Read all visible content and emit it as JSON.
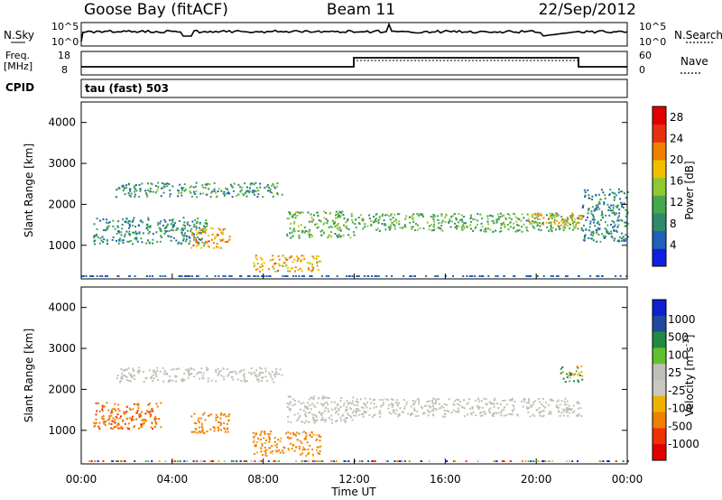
{
  "header": {
    "station": "Goose Bay (fitACF)",
    "beam": "Beam 11",
    "date": "22/Sep/2012"
  },
  "params": {
    "nsky_label": "N.Sky",
    "nsearch_label": "N.Search",
    "scale_top": "10^5",
    "scale_bottom": "10^0",
    "freq_label": "Freq.",
    "freq_unit": "[MHz]",
    "freq_ticks": [
      "18",
      "8"
    ],
    "nave_label": "Nave",
    "nave_ticks": [
      "60",
      "0"
    ],
    "cpid_label": "CPID",
    "cpid_text": "tau (fast) 503"
  },
  "colors": {
    "power_scale": [
      "#1020e0",
      "#2060b8",
      "#2e8a6a",
      "#45a84a",
      "#90c830",
      "#f0c000",
      "#f08000",
      "#e83010",
      "#e00000"
    ],
    "velocity_scale": [
      "#e00000",
      "#f03000",
      "#f08000",
      "#f0b000",
      "#c8c8c0",
      "#c0c0b8",
      "#60c030",
      "#208a40",
      "#204aa0",
      "#1020d0"
    ],
    "ground_scatter": "#c0c0b8"
  },
  "chart_data": [
    {
      "type": "heatmap",
      "title": "Power",
      "xlabel": "Time UT",
      "ylabel": "Slant Range [km]",
      "x_ticks": [
        "00:00",
        "04:00",
        "08:00",
        "12:00",
        "16:00",
        "20:00",
        "00:00"
      ],
      "xlim": [
        0,
        24
      ],
      "ylim": [
        180,
        4500
      ],
      "y_ticks": [
        1000,
        2000,
        3000,
        4000
      ],
      "colorbar": {
        "label": "Power [dB]",
        "ticks": [
          4,
          8,
          12,
          16,
          20,
          24,
          28
        ],
        "range": [
          0,
          30
        ]
      },
      "echo_regions": [
        {
          "t": [
            0.5,
            5.5
          ],
          "r": [
            1050,
            1700
          ],
          "level": 8
        },
        {
          "t": [
            1.5,
            8.8
          ],
          "r": [
            2200,
            2550
          ],
          "level": 9
        },
        {
          "t": [
            4.8,
            6.5
          ],
          "r": [
            950,
            1450
          ],
          "level": 21
        },
        {
          "t": [
            7.5,
            10.5
          ],
          "r": [
            380,
            780
          ],
          "level": 20
        },
        {
          "t": [
            9.0,
            12.0
          ],
          "r": [
            1200,
            1850
          ],
          "level": 12
        },
        {
          "t": [
            12.0,
            22.0
          ],
          "r": [
            1350,
            1800
          ],
          "level": 11
        },
        {
          "t": [
            19.5,
            22.0
          ],
          "r": [
            1500,
            1800
          ],
          "level": 20
        },
        {
          "t": [
            22.0,
            24.0
          ],
          "r": [
            1100,
            2400
          ],
          "level": 7
        }
      ]
    },
    {
      "type": "heatmap",
      "title": "Velocity",
      "xlabel": "Time UT",
      "ylabel": "Slant Range [km]",
      "x_ticks": [
        "00:00",
        "04:00",
        "08:00",
        "12:00",
        "16:00",
        "20:00",
        "00:00"
      ],
      "xlim": [
        0,
        24
      ],
      "ylim": [
        180,
        4500
      ],
      "y_ticks": [
        1000,
        2000,
        3000,
        4000
      ],
      "colorbar": {
        "label": "Velocity [m s^-1]",
        "ticks": [
          "1000",
          "500",
          "100",
          "25",
          "-25",
          "-100",
          "-500",
          "-1000"
        ]
      },
      "echo_regions": [
        {
          "t": [
            1.5,
            8.8
          ],
          "r": [
            2200,
            2550
          ],
          "kind": "ground"
        },
        {
          "t": [
            9.0,
            12.0
          ],
          "r": [
            1200,
            1850
          ],
          "kind": "ground"
        },
        {
          "t": [
            12.0,
            22.0
          ],
          "r": [
            1350,
            1800
          ],
          "kind": "ground"
        },
        {
          "t": [
            4.8,
            6.5
          ],
          "r": [
            950,
            1450
          ],
          "velocity": -300
        },
        {
          "t": [
            7.5,
            10.5
          ],
          "r": [
            380,
            1000
          ],
          "velocity": -200
        },
        {
          "t": [
            0.5,
            3.5
          ],
          "r": [
            1050,
            1700
          ],
          "velocity": -400
        },
        {
          "t": [
            21.0,
            22.0
          ],
          "r": [
            2200,
            2600
          ],
          "velocity": 80
        }
      ]
    }
  ]
}
